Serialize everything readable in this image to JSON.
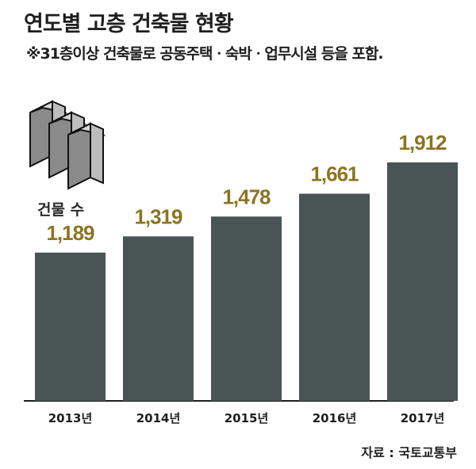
{
  "header": {
    "title": "연도별 고층 건축물 현황",
    "subtitle": "※31층이상 건축물로 공동주택ㆍ숙박ㆍ업무시설 등을 포함."
  },
  "caption": "건물 수",
  "source": "자료 : 국토교통부",
  "colors": {
    "bar": "#485554",
    "value": "#8a7522",
    "axis": "#1e1e1e"
  },
  "icon": "buildings-icon",
  "chart_data": {
    "type": "bar",
    "title": "연도별 고층 건축물 현황",
    "categories": [
      "2013년",
      "2014년",
      "2015년",
      "2016년",
      "2017년"
    ],
    "values": [
      1189,
      1319,
      1478,
      1661,
      1912
    ],
    "value_labels": [
      "1,189",
      "1,319",
      "1,478",
      "1,661",
      "1,912"
    ],
    "ylabel": "건물 수",
    "xlabel": "",
    "ylim": [
      0,
      1912
    ],
    "grid": false
  }
}
